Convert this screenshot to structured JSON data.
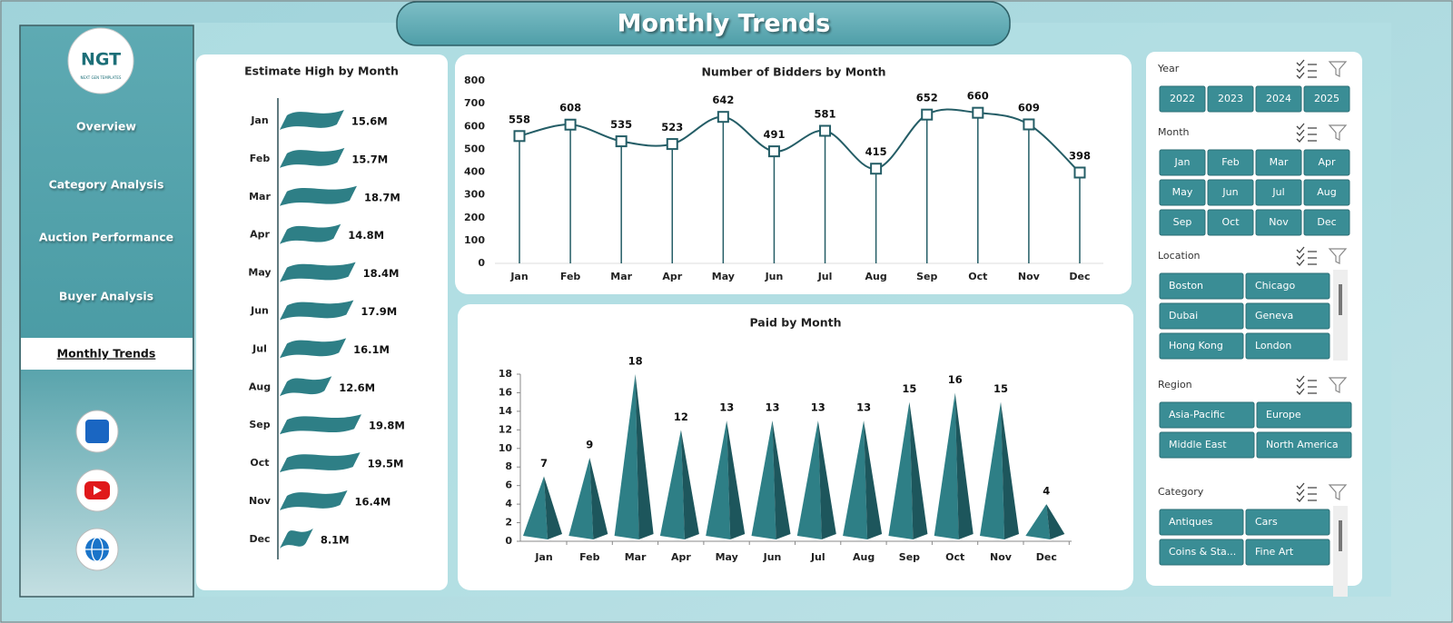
{
  "header": {
    "title": "Monthly Trends"
  },
  "logo": {
    "title": "NGT",
    "subtitle": "NEXT GEN TEMPLATES"
  },
  "navigation": {
    "items": [
      "Overview",
      "Category Analysis",
      "Auction Performance",
      "Buyer Analysis",
      "Monthly Trends"
    ],
    "active_index": 4
  },
  "chart_data": [
    {
      "type": "bar",
      "orientation": "horizontal",
      "title": "Estimate High by Month",
      "categories": [
        "Jan",
        "Feb",
        "Mar",
        "Apr",
        "May",
        "Jun",
        "Jul",
        "Aug",
        "Sep",
        "Oct",
        "Nov",
        "Dec"
      ],
      "values": [
        15.6,
        15.7,
        18.7,
        14.8,
        18.4,
        17.9,
        16.1,
        12.6,
        19.8,
        19.5,
        16.4,
        8.1
      ],
      "value_labels": [
        "15.6M",
        "15.7M",
        "18.7M",
        "14.8M",
        "18.4M",
        "17.9M",
        "16.1M",
        "12.6M",
        "19.8M",
        "19.5M",
        "16.4M",
        "8.1M"
      ],
      "color": "#2e7f86"
    },
    {
      "type": "line",
      "title": "Number of Bidders by Month",
      "categories": [
        "Jan",
        "Feb",
        "Mar",
        "Apr",
        "May",
        "Jun",
        "Jul",
        "Aug",
        "Sep",
        "Oct",
        "Nov",
        "Dec"
      ],
      "values": [
        558,
        608,
        535,
        523,
        642,
        491,
        581,
        415,
        652,
        660,
        609,
        398
      ],
      "ylim": [
        0,
        800
      ],
      "yticks": [
        0,
        100,
        200,
        300,
        400,
        500,
        600,
        700,
        800
      ],
      "color": "#245d66",
      "smooth": true
    },
    {
      "type": "bar",
      "orientation": "vertical",
      "shape": "pyramid",
      "title": "Paid by Month",
      "categories": [
        "Jan",
        "Feb",
        "Mar",
        "Apr",
        "May",
        "Jun",
        "Jul",
        "Aug",
        "Sep",
        "Oct",
        "Nov",
        "Dec"
      ],
      "values": [
        7,
        9,
        18,
        12,
        13,
        13,
        13,
        13,
        15,
        16,
        15,
        4
      ],
      "ylim": [
        0,
        18
      ],
      "yticks": [
        0,
        2,
        4,
        6,
        8,
        10,
        12,
        14,
        16,
        18
      ],
      "color": "#2e7f86"
    }
  ],
  "slicers": [
    {
      "title": "Year",
      "items": [
        "2022",
        "2023",
        "2024",
        "2025"
      ]
    },
    {
      "title": "Month",
      "items": [
        "Jan",
        "Feb",
        "Mar",
        "Apr",
        "May",
        "Jun",
        "Jul",
        "Aug",
        "Sep",
        "Oct",
        "Nov",
        "Dec"
      ]
    },
    {
      "title": "Location",
      "items": [
        "Boston",
        "Chicago",
        "Dubai",
        "Geneva",
        "Hong Kong",
        "London"
      ]
    },
    {
      "title": "Region",
      "items": [
        "Asia-Pacific",
        "Europe",
        "Middle East",
        "North America"
      ]
    },
    {
      "title": "Category",
      "items": [
        "Antiques",
        "Cars",
        "Coins & Sta...",
        "Fine Art"
      ]
    }
  ]
}
